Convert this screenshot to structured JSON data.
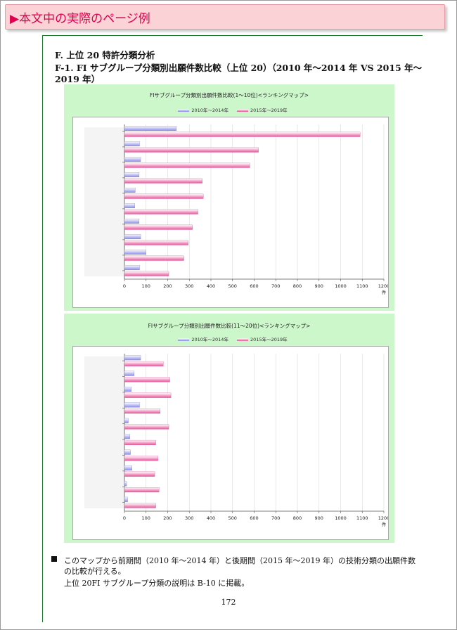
{
  "banner": {
    "text": "▶本文中の実際のページ例"
  },
  "section": {
    "heading": "F.  上位 20 特許分類分析",
    "subheading_line1": "F-1.  FI サブグループ分類別出願件数比較（上位 20）（2010 年～2014 年  VS 2015 年～",
    "subheading_line2": "2019 年）"
  },
  "chart_data": [
    {
      "type": "bar",
      "orientation": "horizontal",
      "title": "FIサブグループ分類別出願件数比較(1～10位)<ランキングマップ>",
      "series": [
        {
          "name": "2010年～2014年",
          "values": [
            240,
            70,
            75,
            68,
            50,
            48,
            68,
            75,
            100,
            70
          ]
        },
        {
          "name": "2015年～2019年",
          "values": [
            1090,
            620,
            580,
            360,
            365,
            340,
            315,
            295,
            275,
            205
          ]
        }
      ],
      "xlim": [
        0,
        1200
      ],
      "xticks": [
        "0",
        "100",
        "200",
        "300",
        "400",
        "500",
        "600",
        "700",
        "800",
        "900",
        "1000",
        "1100",
        "1200"
      ],
      "xunit": "件",
      "legend_position": "top",
      "grid": true
    },
    {
      "type": "bar",
      "orientation": "horizontal",
      "title": "FIサブグループ分類別出願件数比較(11～20位)<ランキングマップ>",
      "series": [
        {
          "name": "2010年～2014年",
          "values": [
            75,
            45,
            32,
            70,
            18,
            25,
            28,
            35,
            10,
            15
          ]
        },
        {
          "name": "2015年～2019年",
          "values": [
            180,
            210,
            215,
            165,
            205,
            145,
            155,
            140,
            160,
            145
          ]
        }
      ],
      "xlim": [
        0,
        1200
      ],
      "xticks": [
        "0",
        "100",
        "200",
        "300",
        "400",
        "500",
        "600",
        "700",
        "800",
        "900",
        "1000",
        "1100",
        "1200"
      ],
      "xunit": "件",
      "legend_position": "top",
      "grid": true
    }
  ],
  "body_text": {
    "line1": "このマップから前期間（2010 年～2014 年）と後期間（2015 年～2019 年）の技術分類の出願件数",
    "line2": "の比較が行える。",
    "line3": "上位 20FI サブグループ分類の説明は B-10 に掲載。"
  },
  "page_number": "172",
  "colors": {
    "banner_text": "#e0004f",
    "panel_bg": "#ccf7ca",
    "series1": "#8b8bea",
    "series2": "#e8559a"
  }
}
